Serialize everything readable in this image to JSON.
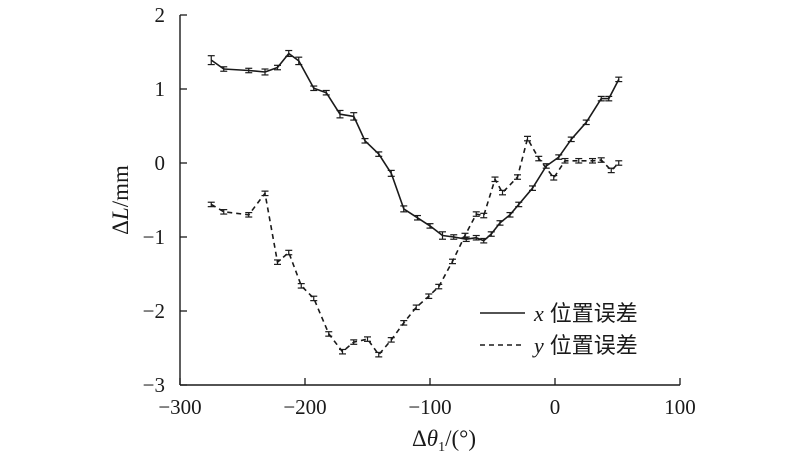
{
  "chart_data": {
    "type": "line",
    "xlabel": "Δθ1/(°)",
    "xlabel_parts": {
      "delta": "Δ",
      "var": "θ",
      "sub": "1",
      "unit": "/(°)"
    },
    "ylabel": "ΔL/mm",
    "ylabel_parts": {
      "delta": "Δ",
      "var": "L",
      "unit": "/mm"
    },
    "xlim": [
      -300,
      100
    ],
    "ylim": [
      -3,
      2
    ],
    "xticks": [
      -300,
      -200,
      -100,
      0,
      100
    ],
    "xtick_labels": [
      "−300",
      "−200",
      "−100",
      "0",
      "100"
    ],
    "yticks": [
      -3,
      -2,
      -1,
      0,
      1,
      2
    ],
    "ytick_labels": [
      "−3",
      "−2",
      "−1",
      "0",
      "1",
      "2"
    ],
    "grid": false,
    "legend_position": "bottom-right",
    "error_bars": true,
    "series": [
      {
        "name": "x 位置误差",
        "name_var": "x",
        "name_text": "位置误差",
        "style": "solid",
        "color": "#1a1a1a",
        "x": [
          -275,
          -265,
          -245,
          -232,
          -222,
          -213,
          -205,
          -193,
          -183,
          -172,
          -161,
          -152,
          -141,
          -131,
          -121,
          -110,
          -100,
          -90,
          -81,
          -71,
          -63,
          -57,
          -51,
          -44,
          -36,
          -29,
          -18,
          -7,
          3,
          13,
          25,
          37,
          43,
          51
        ],
        "y": [
          1.39,
          1.27,
          1.25,
          1.23,
          1.29,
          1.48,
          1.38,
          1.01,
          0.95,
          0.66,
          0.63,
          0.3,
          0.12,
          -0.14,
          -0.62,
          -0.74,
          -0.85,
          -0.98,
          -1.0,
          -1.03,
          -1.01,
          -1.05,
          -0.96,
          -0.81,
          -0.7,
          -0.56,
          -0.34,
          -0.04,
          0.08,
          0.32,
          0.55,
          0.87,
          0.87,
          1.13
        ],
        "err": [
          0.06,
          0.03,
          0.03,
          0.04,
          0.03,
          0.04,
          0.05,
          0.03,
          0.03,
          0.05,
          0.05,
          0.03,
          0.03,
          0.04,
          0.04,
          0.03,
          0.03,
          0.05,
          0.03,
          0.03,
          0.03,
          0.03,
          0.03,
          0.03,
          0.03,
          0.03,
          0.03,
          0.03,
          0.03,
          0.03,
          0.03,
          0.03,
          0.03,
          0.03
        ]
      },
      {
        "name": "y 位置误差",
        "name_var": "y",
        "name_text": "位置误差",
        "style": "dashed",
        "color": "#1a1a1a",
        "x": [
          -275,
          -265,
          -245,
          -232,
          -222,
          -213,
          -203,
          -193,
          -181,
          -170,
          -161,
          -150,
          -141,
          -131,
          -121,
          -111,
          -101,
          -93,
          -82,
          -72,
          -63,
          -57,
          -48,
          -42,
          -30,
          -22,
          -13,
          -1,
          8,
          19,
          30,
          37,
          45,
          51
        ],
        "y": [
          -0.56,
          -0.66,
          -0.7,
          -0.41,
          -1.34,
          -1.21,
          -1.66,
          -1.83,
          -2.31,
          -2.55,
          -2.42,
          -2.38,
          -2.59,
          -2.39,
          -2.16,
          -1.95,
          -1.8,
          -1.67,
          -1.33,
          -0.98,
          -0.69,
          -0.71,
          -0.22,
          -0.4,
          -0.19,
          0.33,
          0.06,
          -0.2,
          0.03,
          0.03,
          0.03,
          0.04,
          -0.1,
          0.0
        ]
      }
    ]
  }
}
